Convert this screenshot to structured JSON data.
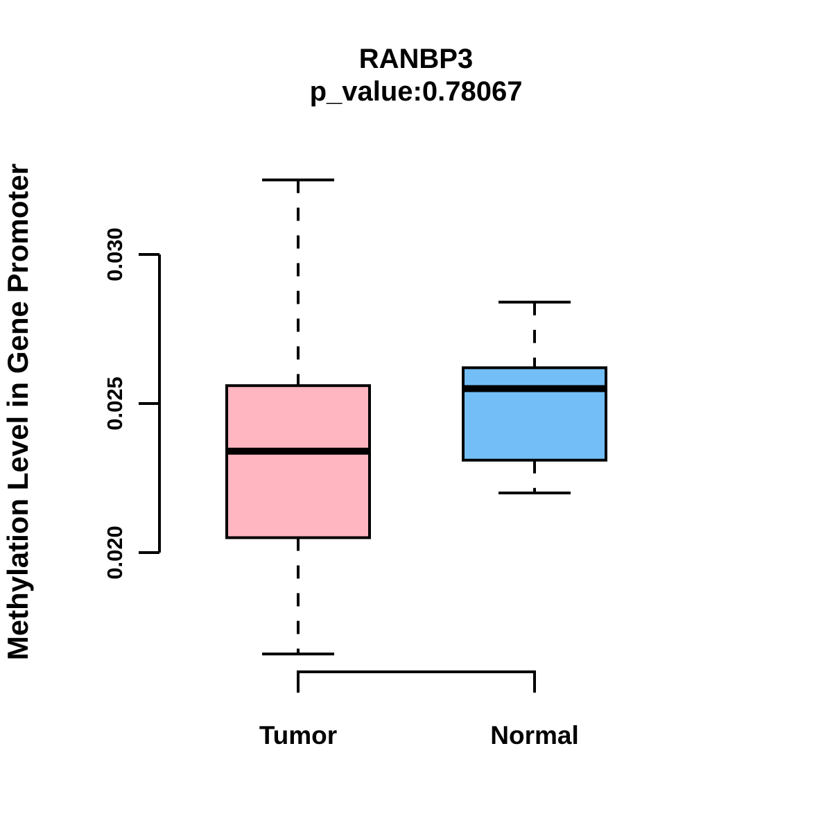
{
  "chart_data": {
    "type": "boxplot",
    "title": "RANBP3",
    "subtitle": "p_value:0.78067",
    "ylabel": "Methylation Level in Gene Promoter",
    "xlabel": "",
    "categories": [
      "Tumor",
      "Normal"
    ],
    "y_ticks": [
      0.02,
      0.025,
      0.03
    ],
    "y_tick_labels": [
      "0.020",
      "0.025",
      "0.030"
    ],
    "ylim": [
      0.0155,
      0.0335
    ],
    "axis_color": "#000000",
    "grid": false,
    "legend": "none",
    "series": [
      {
        "name": "Tumor",
        "color": "#FFB6C1",
        "whisker_low": 0.0166,
        "q1": 0.0205,
        "median": 0.0234,
        "q3": 0.0256,
        "whisker_high": 0.0325
      },
      {
        "name": "Normal",
        "color": "#74BEF8",
        "whisker_low": 0.022,
        "q1": 0.0231,
        "median": 0.0255,
        "q3": 0.0262,
        "whisker_high": 0.0284
      }
    ]
  }
}
